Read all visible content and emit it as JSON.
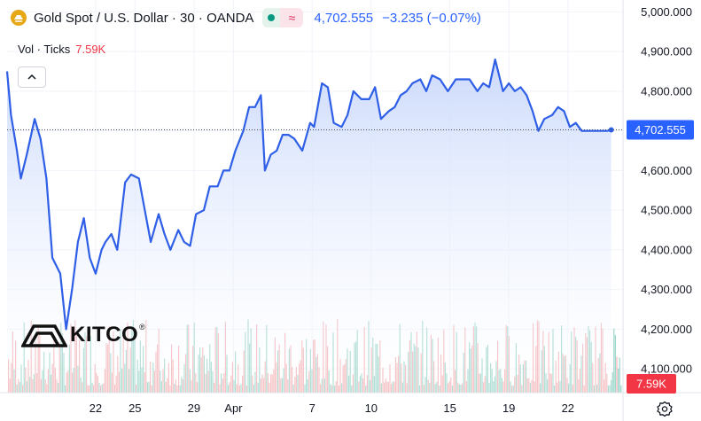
{
  "header": {
    "title": "Gold Spot / U.S. Dollar · 30 · OANDA",
    "price": "4,702.555",
    "change": "−3.235 (−0.07%)"
  },
  "volume_row": {
    "label": "Vol · Ticks",
    "value": "7.59K"
  },
  "logo": {
    "text": "KITCO",
    "reg_mark": "®"
  },
  "icons": [
    "gold-spot-icon",
    "market-open-icon",
    "wave-icon",
    "chevron-up-icon",
    "gear-icon"
  ],
  "colors": {
    "line": "#2f5fe6",
    "area_top": "#c9d8fb",
    "vol_up": "#8ccfc2",
    "vol_down": "#f2a8ab",
    "price_badge": "#2962ff",
    "vol_badge": "#f23645"
  },
  "chart_data": {
    "type": "area",
    "y_tick_labels": [
      "5,000.000",
      "4,900.000",
      "4,800.000",
      "4,700.000",
      "4,600.000",
      "4,500.000",
      "4,400.000",
      "4,300.000",
      "4,200.000",
      "4,100.000"
    ],
    "y_ticks": [
      5000,
      4900,
      4800,
      4700,
      4600,
      4500,
      4400,
      4300,
      4200,
      4100
    ],
    "ylim": [
      4040,
      5030
    ],
    "x_tick_labels": [
      "22",
      "25",
      "29",
      "Apr",
      "7",
      "10",
      "15",
      "19",
      "22"
    ],
    "x_tick_positions": [
      4.5,
      6.5,
      9.5,
      11.5,
      15.5,
      18.5,
      22.5,
      25.5,
      28.5
    ],
    "xlim": [
      0,
      31.3
    ],
    "last_price": 4702.555,
    "last_price_label": "4,702.555",
    "volume_label": "7.59K",
    "grid": true,
    "series": [
      {
        "x": [
          0,
          0.2,
          0.5,
          0.7,
          1.0,
          1.4,
          1.7,
          2.0,
          2.3,
          2.7,
          3.0,
          3.3,
          3.6,
          3.9,
          4.2,
          4.5,
          4.8,
          5.0,
          5.3,
          5.6,
          6.0,
          6.3,
          6.7,
          7.0,
          7.3,
          7.7,
          8.0,
          8.3,
          8.7,
          9.0,
          9.3,
          9.6,
          10.0,
          10.3,
          10.7,
          11.0,
          11.3,
          11.6,
          12.0,
          12.3,
          12.6,
          12.9,
          13.1,
          13.4,
          13.7,
          14.0,
          14.3,
          14.6,
          15.0,
          15.4,
          15.6,
          16.0,
          16.3,
          16.6,
          17.0,
          17.3,
          17.6,
          18.0,
          18.4,
          18.7,
          19.0,
          19.4,
          19.7,
          20.0,
          20.3,
          20.6,
          21.0,
          21.3,
          21.6,
          22.0,
          22.4,
          22.8,
          23.2,
          23.5,
          23.9,
          24.2,
          24.5,
          24.8,
          25.2,
          25.5,
          25.8,
          26.1,
          26.4,
          26.7,
          27.0,
          27.3,
          27.7,
          28.0,
          28.3,
          28.6,
          28.9,
          29.2,
          29.5,
          29.8,
          30.2,
          30.5,
          30.7
        ],
        "y": [
          4850,
          4740,
          4650,
          4580,
          4640,
          4730,
          4680,
          4580,
          4380,
          4340,
          4200,
          4300,
          4420,
          4480,
          4380,
          4340,
          4400,
          4420,
          4440,
          4400,
          4570,
          4590,
          4580,
          4500,
          4420,
          4490,
          4440,
          4400,
          4450,
          4420,
          4410,
          4490,
          4500,
          4560,
          4560,
          4600,
          4600,
          4650,
          4700,
          4760,
          4760,
          4790,
          4600,
          4640,
          4650,
          4690,
          4690,
          4680,
          4650,
          4720,
          4710,
          4820,
          4810,
          4720,
          4710,
          4740,
          4800,
          4780,
          4780,
          4810,
          4730,
          4750,
          4760,
          4790,
          4800,
          4820,
          4830,
          4800,
          4840,
          4830,
          4800,
          4830,
          4830,
          4830,
          4800,
          4820,
          4810,
          4880,
          4800,
          4820,
          4800,
          4810,
          4790,
          4750,
          4700,
          4730,
          4740,
          4760,
          4750,
          4710,
          4720,
          4700,
          4700,
          4700,
          4700,
          4700,
          4702.555
        ]
      }
    ]
  }
}
